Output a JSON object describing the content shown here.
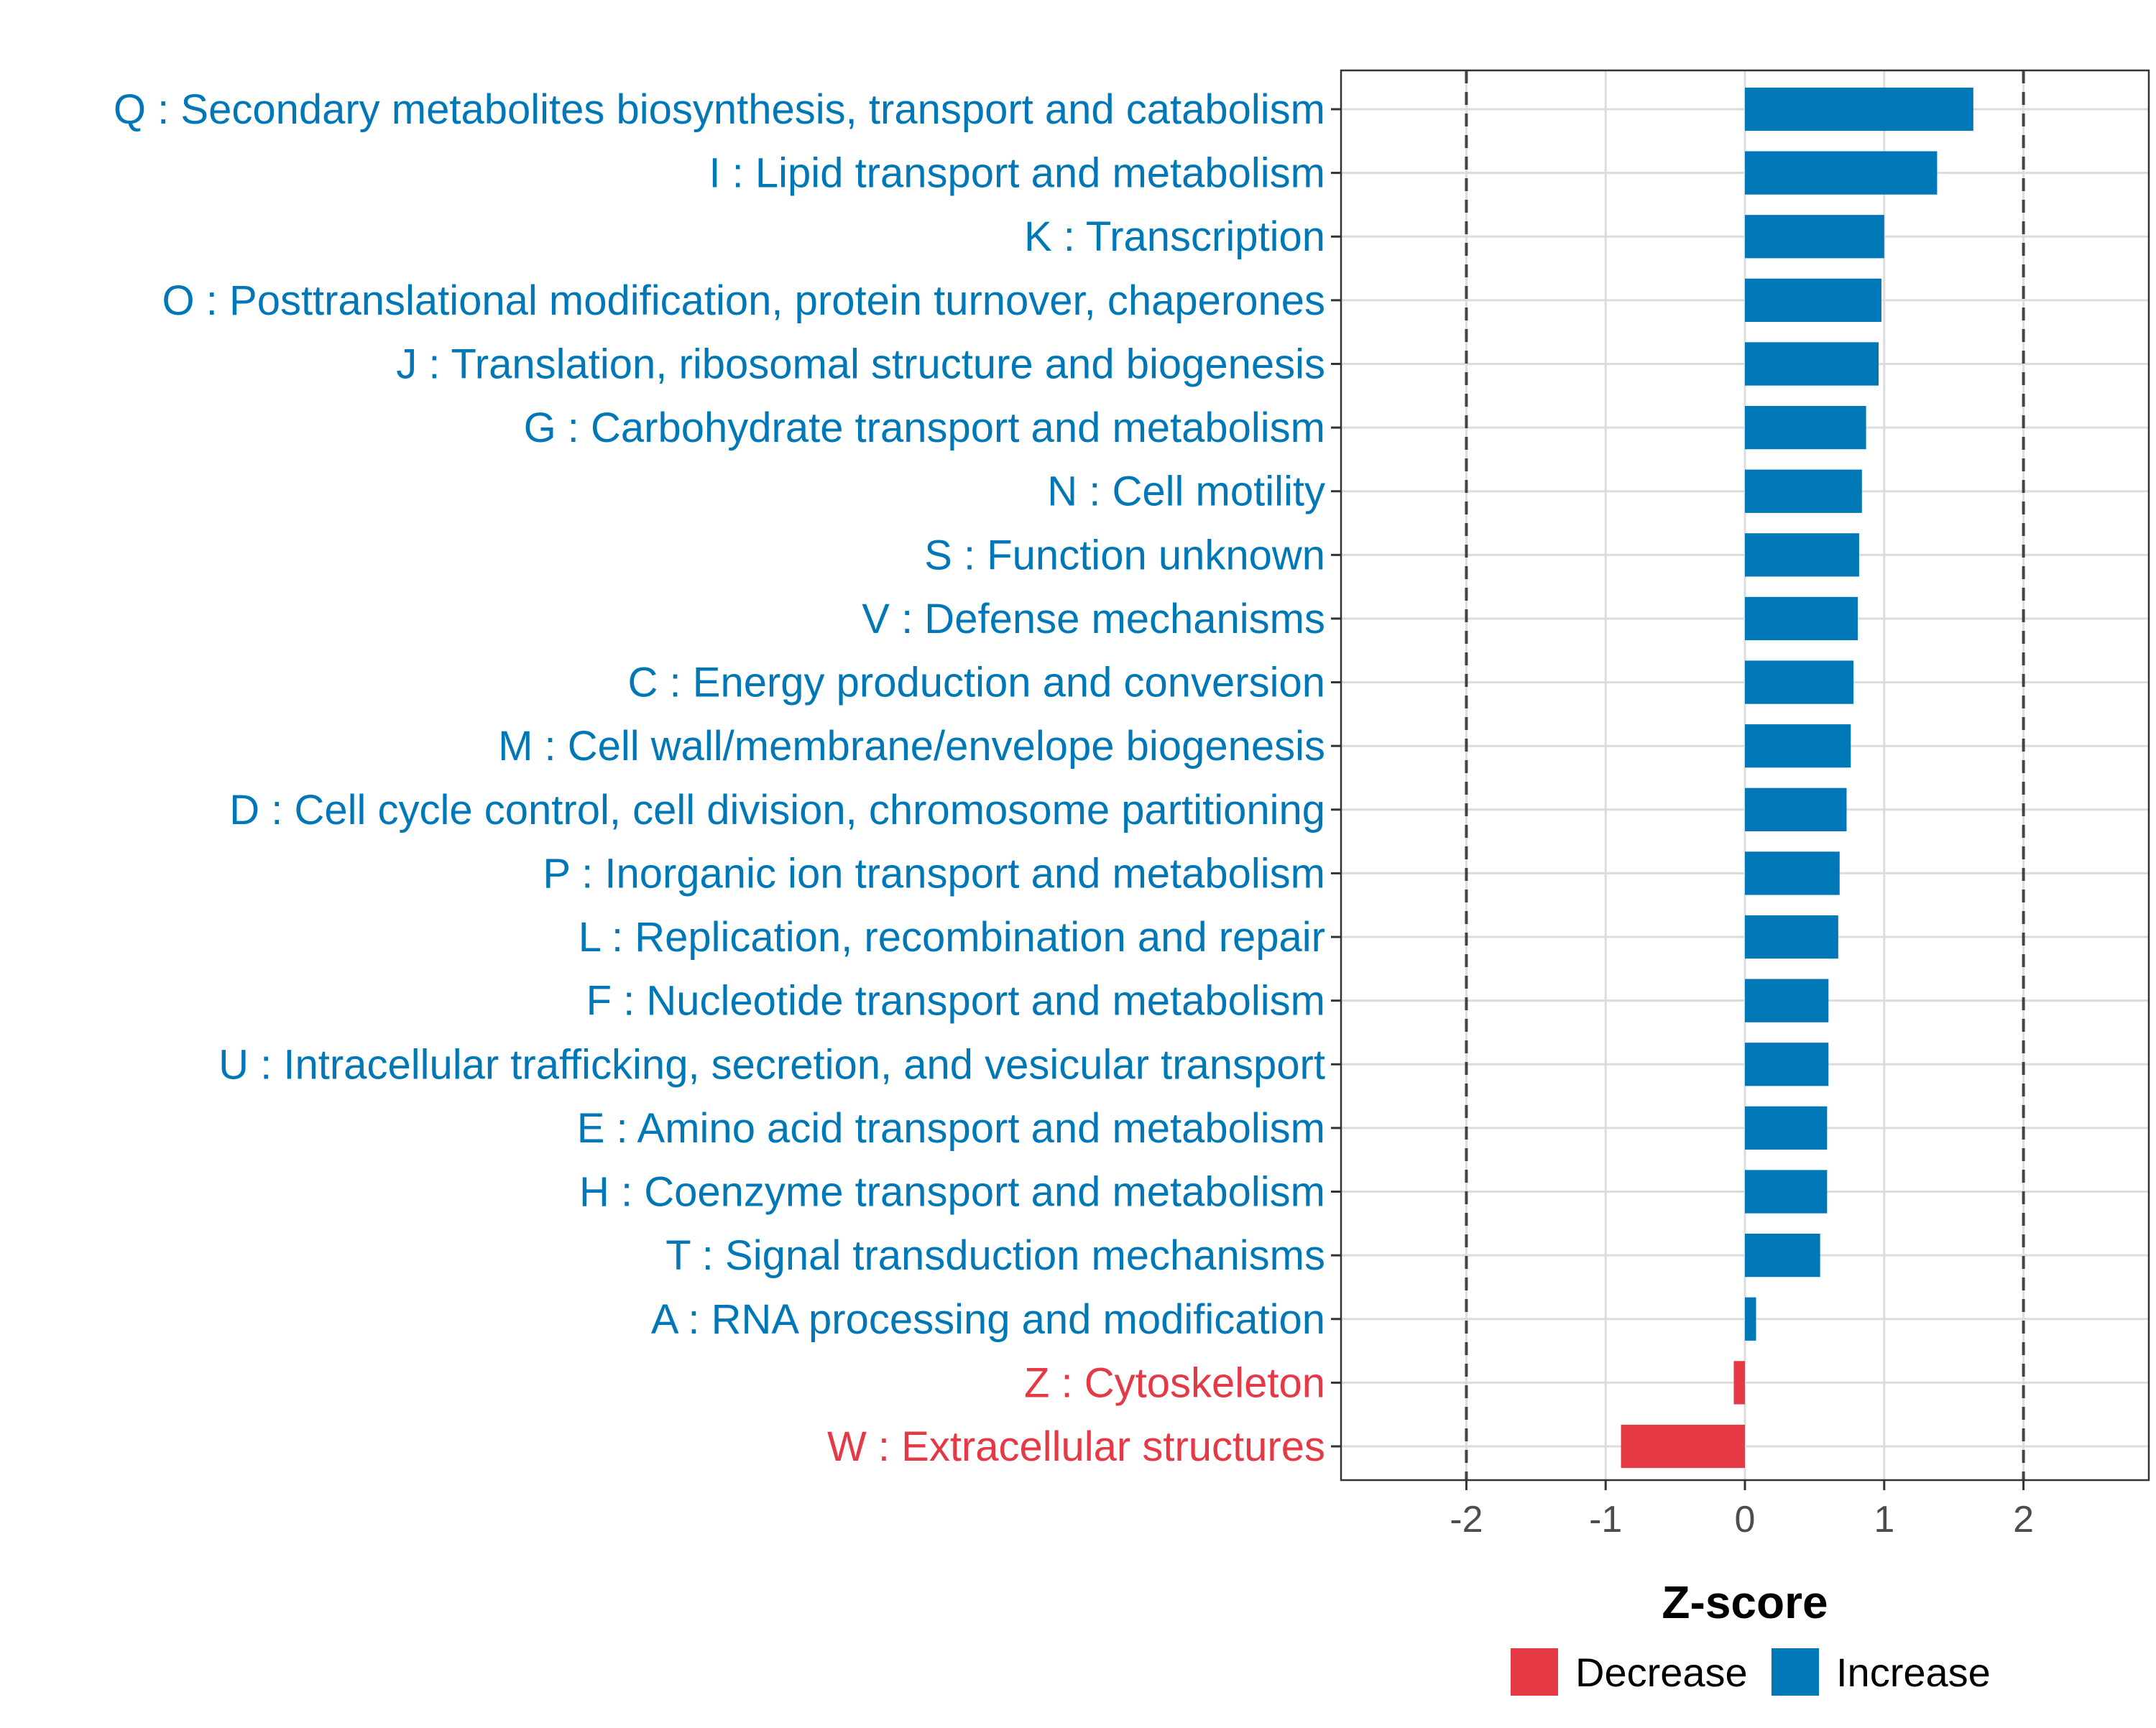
{
  "chart_data": {
    "type": "bar",
    "orientation": "horizontal",
    "xlabel": "Z-score",
    "xlim": [
      -2.9,
      2.9
    ],
    "xticks": [
      -2,
      -1,
      0,
      1,
      2
    ],
    "xtick_labels": [
      "-2",
      "-1",
      "0",
      "1",
      "2"
    ],
    "reference_lines": [
      -2,
      2
    ],
    "grid": true,
    "legend_position": "bottom",
    "legend": [
      {
        "label": "Decrease",
        "color": "#e63946"
      },
      {
        "label": "Increase",
        "color": "#0077b6"
      }
    ],
    "colors": {
      "Increase": "#0077b6",
      "Decrease": "#e63946"
    },
    "categories": [
      "Q : Secondary metabolites biosynthesis, transport and catabolism",
      "I : Lipid transport and metabolism",
      "K : Transcription",
      "O : Posttranslational modification, protein turnover, chaperones",
      "J : Translation, ribosomal structure and biogenesis",
      "G : Carbohydrate transport and metabolism",
      "N : Cell motility",
      "S : Function unknown",
      "V : Defense mechanisms",
      "C : Energy production and conversion",
      "M : Cell wall/membrane/envelope biogenesis",
      "D : Cell cycle control, cell division, chromosome partitioning",
      "P : Inorganic ion transport and metabolism",
      "L : Replication, recombination and repair",
      "F : Nucleotide transport and metabolism",
      "U : Intracellular trafficking, secretion, and vesicular transport",
      "E : Amino acid transport and metabolism",
      "H : Coenzyme transport and metabolism",
      "T : Signal transduction mechanisms",
      "A : RNA processing and modification",
      "Z : Cytoskeleton",
      "W : Extracellular structures"
    ],
    "values": [
      1.64,
      1.38,
      1.0,
      0.98,
      0.96,
      0.87,
      0.84,
      0.82,
      0.81,
      0.78,
      0.76,
      0.73,
      0.68,
      0.67,
      0.6,
      0.6,
      0.59,
      0.59,
      0.54,
      0.08,
      -0.08,
      -0.89
    ],
    "groups": [
      "Increase",
      "Increase",
      "Increase",
      "Increase",
      "Increase",
      "Increase",
      "Increase",
      "Increase",
      "Increase",
      "Increase",
      "Increase",
      "Increase",
      "Increase",
      "Increase",
      "Increase",
      "Increase",
      "Increase",
      "Increase",
      "Increase",
      "Increase",
      "Decrease",
      "Decrease"
    ]
  }
}
